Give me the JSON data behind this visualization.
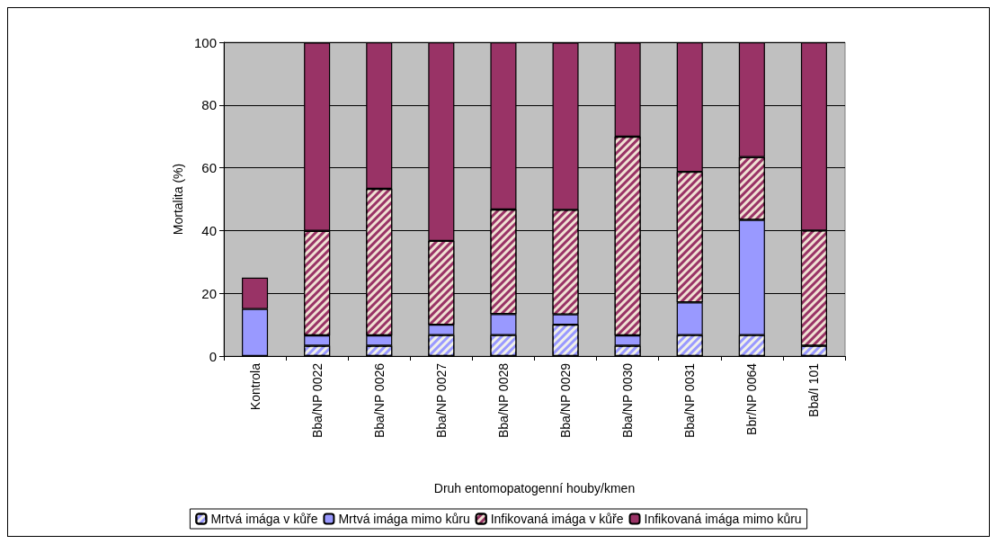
{
  "chart_data": {
    "type": "bar",
    "stacked": true,
    "xlabel": "Druh entomopatogenní houby/kmen",
    "ylabel": "Mortalita (%)",
    "categories": [
      "Kontrola",
      "Bba/NP 0022",
      "Bba/NP 0026",
      "Bba/NP 0027",
      "Bba/NP 0028",
      "Bba/NP 0029",
      "Bba/NP 0030",
      "Bba/NP 0031",
      "Bbr/NP 0064",
      "Bba/I 101"
    ],
    "series": [
      {
        "name": "Mrtvá imága v kůře",
        "color": "#9999ff",
        "values": [
          0,
          3.3,
          3.3,
          6.7,
          6.7,
          10,
          3.3,
          6.7,
          6.7,
          3.3
        ]
      },
      {
        "name": "Mrtvá imága mimo kůru",
        "color": "#9999ff",
        "values": [
          15,
          3.3,
          3.3,
          3.3,
          6.7,
          3.3,
          3.3,
          10.4,
          36.7,
          0
        ]
      },
      {
        "name": "Infikovaná imága v kůře",
        "color": "#993366",
        "values": [
          0,
          33.3,
          46.7,
          26.7,
          33.3,
          33.3,
          63.3,
          41.6,
          20,
          36.7
        ]
      },
      {
        "name": "Infikovaná imága mimo kůru",
        "color": "#993366",
        "values": [
          10,
          60,
          46.7,
          63.3,
          53.3,
          53.3,
          30,
          41.3,
          36.6,
          60
        ]
      }
    ],
    "ylim": [
      0,
      100
    ],
    "yticks": [
      0,
      20,
      40,
      60,
      80,
      100
    ],
    "grid": "y",
    "legend": "bottom"
  }
}
